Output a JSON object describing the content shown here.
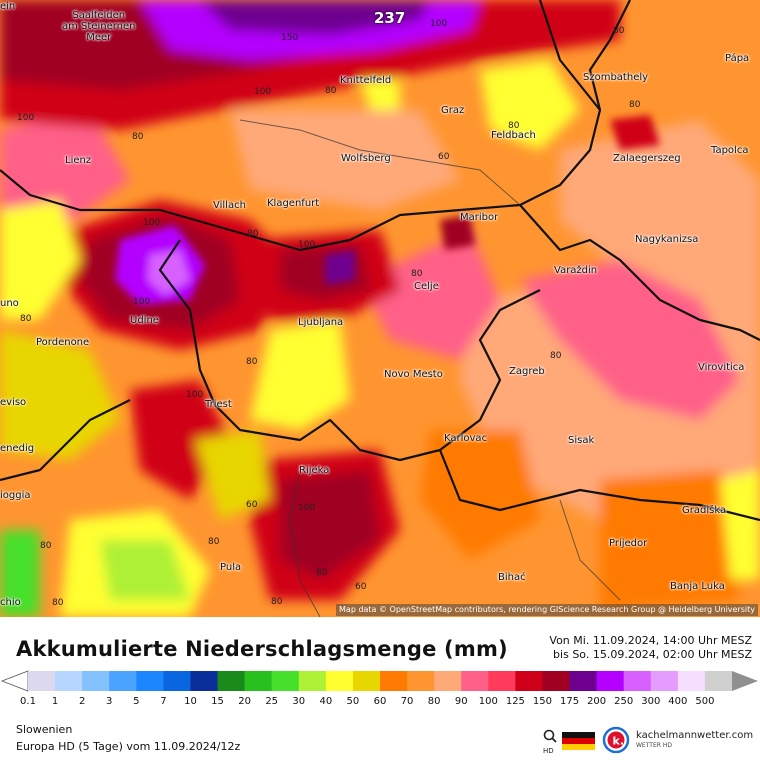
{
  "map": {
    "max_value": "237",
    "attribution": "Map data © OpenStreetMap contributors, rendering GIScience Research Group @ Heidelberg University",
    "cities": [
      {
        "name": "Saalfelden am Steinernen Meer",
        "lines": [
          "Saalfelden",
          "am Steinernen",
          "Meer"
        ]
      },
      {
        "name": "Knittelfeld"
      },
      {
        "name": "Szombathely"
      },
      {
        "name": "Pápa"
      },
      {
        "name": "Graz"
      },
      {
        "name": "Feldbach"
      },
      {
        "name": "Lienz"
      },
      {
        "name": "Wolfsberg"
      },
      {
        "name": "Zalaegerszeg"
      },
      {
        "name": "Tapolca"
      },
      {
        "name": "Villach"
      },
      {
        "name": "Klagenfurt"
      },
      {
        "name": "Maribor"
      },
      {
        "name": "Nagykanizsa"
      },
      {
        "name": "Varaždin"
      },
      {
        "name": "Celje"
      },
      {
        "name": "Udine"
      },
      {
        "name": "Ljubljana"
      },
      {
        "name": "Pordenone"
      },
      {
        "name": "Novo Mesto"
      },
      {
        "name": "Zagreb"
      },
      {
        "name": "Virovitica"
      },
      {
        "name": "Triest"
      },
      {
        "name": "Karlovac"
      },
      {
        "name": "Sisak"
      },
      {
        "name": "Rijeka"
      },
      {
        "name": "Gradiška"
      },
      {
        "name": "Prijedor"
      },
      {
        "name": "Pula"
      },
      {
        "name": "Bihać"
      },
      {
        "name": "Banja Luka"
      },
      {
        "name": "Venedig"
      },
      {
        "name": "Treviso"
      },
      {
        "name": "Chioggia"
      },
      {
        "name": "Belluno"
      }
    ],
    "edge_fragments": [
      "ein",
      "uno",
      "eviso",
      "enedig",
      "ioggia",
      "chio"
    ],
    "isolines": [
      "150",
      "100",
      "100",
      "100",
      "80",
      "100",
      "80",
      "60",
      "80",
      "80",
      "100",
      "80",
      "100",
      "80",
      "80",
      "100",
      "80",
      "80",
      "60",
      "80",
      "60",
      "80",
      "80",
      "80",
      "80",
      "100",
      "80"
    ]
  },
  "footer": {
    "title": "Akkumulierte Niederschlagsmenge (mm)",
    "period_from": "Von Mi. 11.09.2024, 14:00 Uhr MESZ",
    "period_to": "bis So. 15.09.2024, 02:00 Uhr MESZ",
    "region": "Slowenien",
    "model": "Europa HD (5 Tage) vom  11.09.2024/12z",
    "brand": "kachelmannwetter.com",
    "brand_sub": "WETTER HD",
    "hd_label": "HD"
  },
  "scale": {
    "ticks": [
      "0.1",
      "1",
      "2",
      "3",
      "5",
      "7",
      "10",
      "15",
      "20",
      "25",
      "30",
      "40",
      "50",
      "60",
      "70",
      "80",
      "90",
      "100",
      "125",
      "150",
      "175",
      "200",
      "250",
      "300",
      "400",
      "500"
    ],
    "colors": [
      "#dcd9ee",
      "#b7d6ff",
      "#84c1ff",
      "#4aa3ff",
      "#1c86ff",
      "#0a66e0",
      "#0b2f9a",
      "#1a8a1a",
      "#27c01e",
      "#46e02c",
      "#aef036",
      "#ffff30",
      "#e8d600",
      "#ff7a00",
      "#ff9530",
      "#ffa878",
      "#ff6088",
      "#ff3a5a",
      "#d00018",
      "#a00022",
      "#6e0090",
      "#b400ff",
      "#d860ff",
      "#e49cff",
      "#f6deff",
      "#d0d0d0"
    ]
  }
}
